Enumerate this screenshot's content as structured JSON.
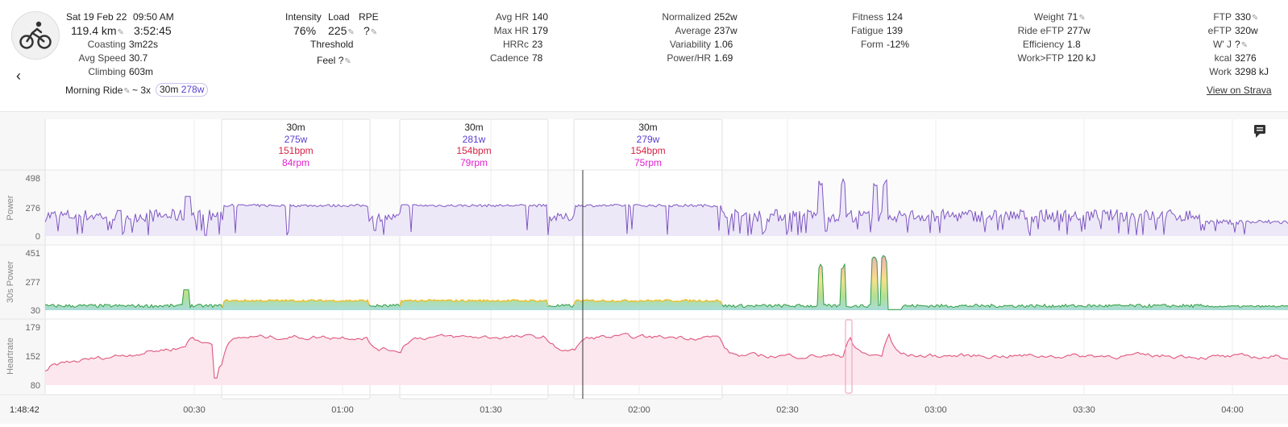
{
  "header": {
    "date": "Sat 19 Feb 22",
    "time": "09:50 AM",
    "distance": "119.4 km",
    "duration": "3:52:45",
    "left_stats": [
      {
        "label": "Coasting",
        "value": "3m22s"
      },
      {
        "label": "Avg Speed",
        "value": "30.7"
      },
      {
        "label": "Climbing",
        "value": "603m"
      }
    ],
    "activity_name": "Morning Ride",
    "interval_summary": "~ 3x",
    "interval_chip_duration": "30m",
    "interval_chip_power": "278w",
    "intensity": {
      "label": "Intensity",
      "value": "76%"
    },
    "load": {
      "label": "Load",
      "value": "225"
    },
    "rpe": {
      "label": "RPE",
      "value": "?"
    },
    "threshold_label": "Threshold",
    "feel": {
      "label": "Feel",
      "value": "?"
    },
    "hr_stats": [
      {
        "label": "Avg HR",
        "value": "140"
      },
      {
        "label": "Max HR",
        "value": "179"
      },
      {
        "label": "HRRc",
        "value": "23"
      },
      {
        "label": "Cadence",
        "value": "78"
      }
    ],
    "power_stats": [
      {
        "label": "Normalized",
        "value": "252w"
      },
      {
        "label": "Average",
        "value": "237w"
      },
      {
        "label": "Variability",
        "value": "1.06"
      },
      {
        "label": "Power/HR",
        "value": "1.69"
      }
    ],
    "fitness_stats": [
      {
        "label": "Fitness",
        "value": "124"
      },
      {
        "label": "Fatigue",
        "value": "139"
      },
      {
        "label": "Form",
        "value": "-12%"
      }
    ],
    "weight_stats": [
      {
        "label": "Weight",
        "value": "71"
      },
      {
        "label": "Ride eFTP",
        "value": "277w"
      },
      {
        "label": "Efficiency",
        "value": "1.8"
      },
      {
        "label": "Work>FTP",
        "value": "120 kJ"
      }
    ],
    "ftp_stats": [
      {
        "label": "FTP",
        "value": "330"
      },
      {
        "label": "eFTP",
        "value": "320w"
      },
      {
        "label": "W' J",
        "value": "?"
      },
      {
        "label": "kcal",
        "value": "3276"
      },
      {
        "label": "Work",
        "value": "3298 kJ"
      }
    ],
    "strava_link": "View on Strava",
    "back_icon": "chevron-left-icon",
    "activity_icon": "bicycle-icon"
  },
  "chart_data": {
    "type": "line",
    "cursor_time": "1:48:42",
    "x_ticks": [
      "00:30",
      "01:00",
      "01:30",
      "02:00",
      "02:30",
      "03:00",
      "03:30",
      "04:00"
    ],
    "intervals": [
      {
        "duration": "30m",
        "power": "275w",
        "hr": "151bpm",
        "cadence": "84rpm"
      },
      {
        "duration": "30m",
        "power": "281w",
        "hr": "154bpm",
        "cadence": "79rpm"
      },
      {
        "duration": "30m",
        "power": "279w",
        "hr": "154bpm",
        "cadence": "75rpm"
      }
    ],
    "panels": [
      {
        "name": "Power",
        "ticks": [
          "498",
          "276",
          "0"
        ],
        "ylim": [
          0,
          498
        ],
        "color": "#7e57c2"
      },
      {
        "name": "30s Power",
        "ticks": [
          "451",
          "277",
          "30"
        ],
        "ylim": [
          30,
          451
        ],
        "color": "#2e9e44"
      },
      {
        "name": "Heartrate",
        "ticks": [
          "179",
          "152",
          "80"
        ],
        "ylim": [
          80,
          179
        ],
        "color": "#e0567f"
      }
    ],
    "colors": {
      "power": "#7e57c2",
      "hr": "#e0567f",
      "interval_power": "#5b3fd0",
      "interval_hr": "#d62344",
      "interval_cadence": "#e21fd0"
    }
  }
}
